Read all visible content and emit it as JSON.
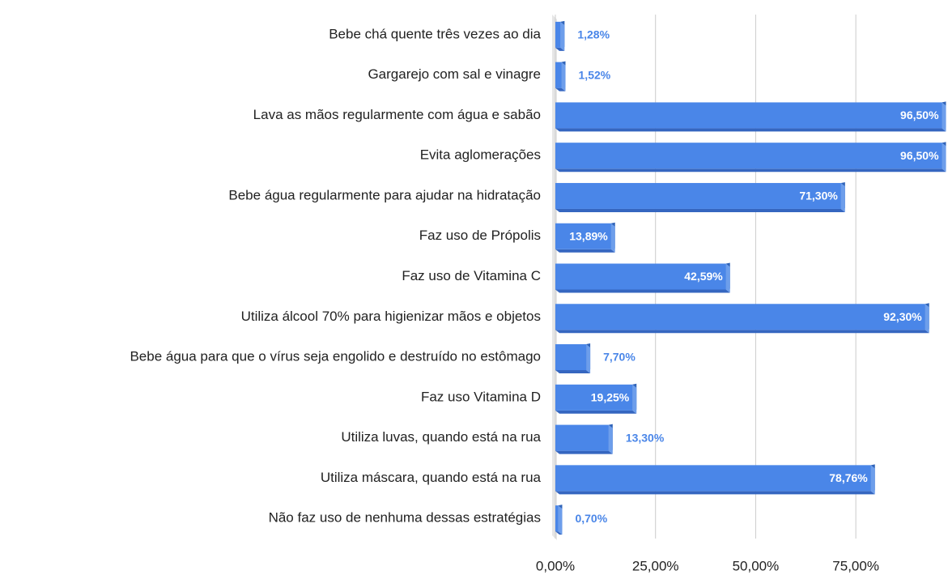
{
  "chart_data": {
    "type": "bar",
    "orientation": "horizontal",
    "categories": [
      "Bebe chá quente três vezes ao dia",
      "Gargarejo com sal e vinagre",
      "Lava as mãos regularmente com água e sabão",
      "Evita aglomerações",
      "Bebe água regularmente para ajudar na hidratação",
      "Faz uso de Própolis",
      "Faz uso de Vitamina C",
      "Utiliza álcool 70% para higienizar mãos e objetos",
      "Bebe água para que o vírus seja engolido e destruído no estômago",
      "Faz uso Vitamina D",
      "Utiliza luvas, quando está na rua",
      "Utiliza máscara, quando está na rua",
      "Não faz uso de nenhuma dessas estratégias"
    ],
    "values": [
      1.28,
      1.52,
      96.5,
      96.5,
      71.3,
      13.89,
      42.59,
      92.3,
      7.7,
      19.25,
      13.3,
      78.76,
      0.7
    ],
    "value_labels": [
      "1,28%",
      "1,52%",
      "96,50%",
      "96,50%",
      "71,30%",
      "13,89%",
      "42,59%",
      "92,30%",
      "7,70%",
      "19,25%",
      "13,30%",
      "78,76%",
      "0,70%"
    ],
    "color": "#4a86e8",
    "xlim": [
      0,
      97
    ],
    "xticks": [
      {
        "value": 0,
        "label": "0,00%"
      },
      {
        "value": 25,
        "label": "25,00%"
      },
      {
        "value": 50,
        "label": "50,00%"
      },
      {
        "value": 75,
        "label": "75,00%"
      }
    ],
    "grid": true
  }
}
